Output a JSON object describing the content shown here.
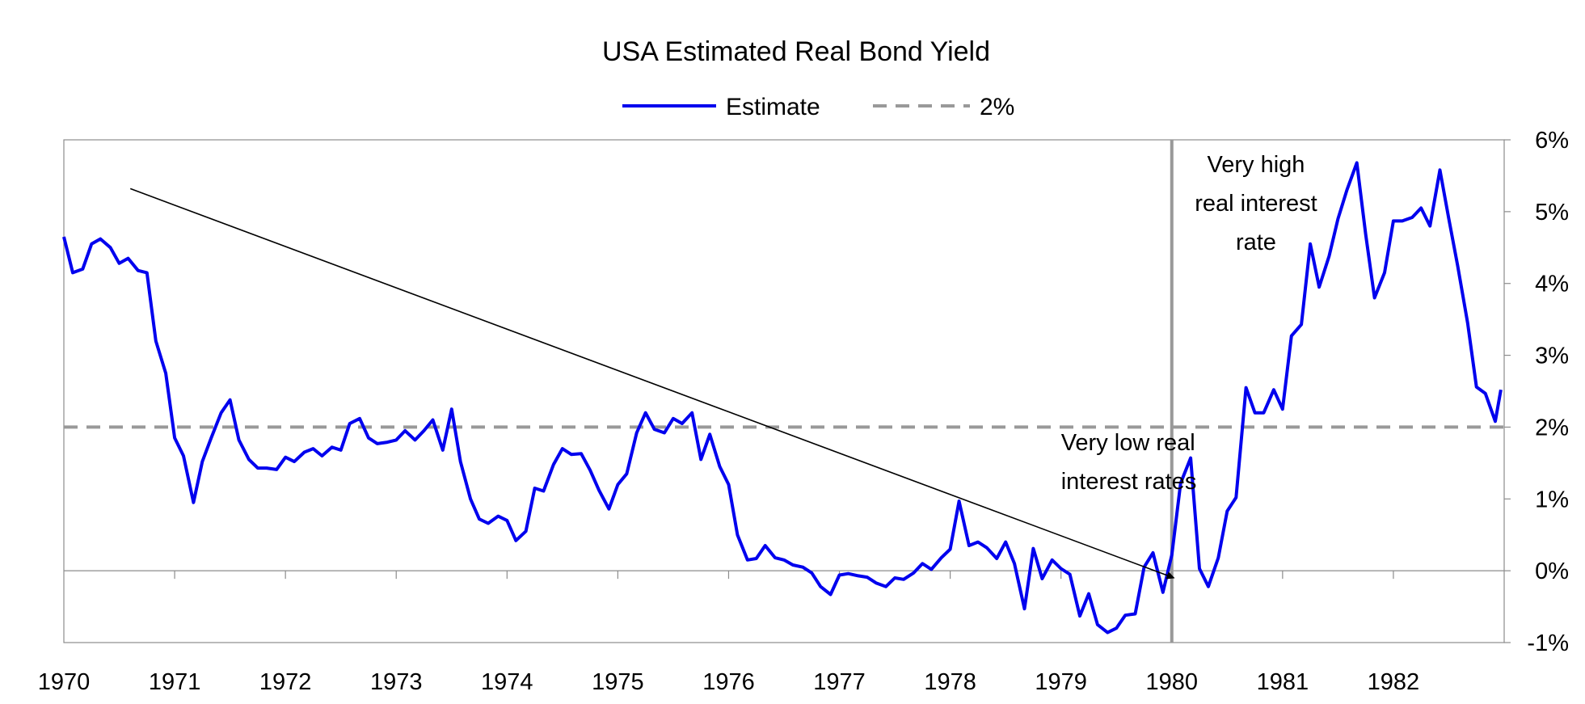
{
  "chart_data": {
    "type": "line",
    "title": "USA Estimated Real Bond Yield",
    "xlabel": "",
    "ylabel": "",
    "x_range": [
      1970,
      1983
    ],
    "x_ticks": [
      "1970",
      "1971",
      "1972",
      "1973",
      "1974",
      "1975",
      "1976",
      "1977",
      "1978",
      "1979",
      "1980",
      "1981",
      "1982"
    ],
    "ylim": [
      -1,
      6
    ],
    "y_ticks": [
      "-1%",
      "0%",
      "1%",
      "2%",
      "3%",
      "4%",
      "5%",
      "6%"
    ],
    "y_axis_side": "right",
    "grid": false,
    "legend_position": "top-center",
    "series": [
      {
        "name": "Estimate",
        "color": "#0000ee",
        "style": "solid",
        "points": [
          [
            1970.0,
            4.65
          ],
          [
            1970.08,
            4.15
          ],
          [
            1970.17,
            4.2
          ],
          [
            1970.25,
            4.55
          ],
          [
            1970.33,
            4.62
          ],
          [
            1970.42,
            4.5
          ],
          [
            1970.5,
            4.28
          ],
          [
            1970.58,
            4.35
          ],
          [
            1970.67,
            4.18
          ],
          [
            1970.75,
            4.15
          ],
          [
            1970.83,
            3.2
          ],
          [
            1970.92,
            2.75
          ],
          [
            1971.0,
            1.85
          ],
          [
            1971.08,
            1.6
          ],
          [
            1971.17,
            0.95
          ],
          [
            1971.25,
            1.52
          ],
          [
            1971.33,
            1.85
          ],
          [
            1971.42,
            2.2
          ],
          [
            1971.5,
            2.38
          ],
          [
            1971.58,
            1.82
          ],
          [
            1971.67,
            1.55
          ],
          [
            1971.75,
            1.43
          ],
          [
            1971.83,
            1.43
          ],
          [
            1971.92,
            1.41
          ],
          [
            1972.0,
            1.58
          ],
          [
            1972.08,
            1.52
          ],
          [
            1972.17,
            1.65
          ],
          [
            1972.25,
            1.7
          ],
          [
            1972.33,
            1.6
          ],
          [
            1972.42,
            1.72
          ],
          [
            1972.5,
            1.68
          ],
          [
            1972.58,
            2.05
          ],
          [
            1972.67,
            2.12
          ],
          [
            1972.75,
            1.85
          ],
          [
            1972.83,
            1.77
          ],
          [
            1972.92,
            1.79
          ],
          [
            1973.0,
            1.82
          ],
          [
            1973.08,
            1.95
          ],
          [
            1973.17,
            1.82
          ],
          [
            1973.25,
            1.95
          ],
          [
            1973.33,
            2.1
          ],
          [
            1973.42,
            1.68
          ],
          [
            1973.5,
            2.25
          ],
          [
            1973.58,
            1.52
          ],
          [
            1973.67,
            1.0
          ],
          [
            1973.75,
            0.72
          ],
          [
            1973.83,
            0.66
          ],
          [
            1973.92,
            0.76
          ],
          [
            1974.0,
            0.7
          ],
          [
            1974.08,
            0.42
          ],
          [
            1974.17,
            0.55
          ],
          [
            1974.25,
            1.15
          ],
          [
            1974.33,
            1.11
          ],
          [
            1974.42,
            1.48
          ],
          [
            1974.5,
            1.7
          ],
          [
            1974.58,
            1.62
          ],
          [
            1974.67,
            1.63
          ],
          [
            1974.75,
            1.4
          ],
          [
            1974.83,
            1.12
          ],
          [
            1974.92,
            0.86
          ],
          [
            1975.0,
            1.2
          ],
          [
            1975.08,
            1.35
          ],
          [
            1975.17,
            1.92
          ],
          [
            1975.25,
            2.2
          ],
          [
            1975.33,
            1.97
          ],
          [
            1975.42,
            1.92
          ],
          [
            1975.5,
            2.12
          ],
          [
            1975.58,
            2.05
          ],
          [
            1975.67,
            2.2
          ],
          [
            1975.75,
            1.55
          ],
          [
            1975.83,
            1.9
          ],
          [
            1975.92,
            1.45
          ],
          [
            1976.0,
            1.2
          ],
          [
            1976.08,
            0.5
          ],
          [
            1976.17,
            0.15
          ],
          [
            1976.25,
            0.17
          ],
          [
            1976.33,
            0.35
          ],
          [
            1976.42,
            0.18
          ],
          [
            1976.5,
            0.15
          ],
          [
            1976.58,
            0.08
          ],
          [
            1976.67,
            0.05
          ],
          [
            1976.75,
            -0.03
          ],
          [
            1976.83,
            -0.22
          ],
          [
            1976.92,
            -0.33
          ],
          [
            1977.0,
            -0.06
          ],
          [
            1977.08,
            -0.04
          ],
          [
            1977.17,
            -0.07
          ],
          [
            1977.25,
            -0.09
          ],
          [
            1977.33,
            -0.17
          ],
          [
            1977.42,
            -0.22
          ],
          [
            1977.5,
            -0.1
          ],
          [
            1977.58,
            -0.12
          ],
          [
            1977.67,
            -0.03
          ],
          [
            1977.75,
            0.1
          ],
          [
            1977.83,
            0.02
          ],
          [
            1977.92,
            0.18
          ],
          [
            1978.0,
            0.3
          ],
          [
            1978.08,
            0.97
          ],
          [
            1978.17,
            0.35
          ],
          [
            1978.25,
            0.4
          ],
          [
            1978.33,
            0.32
          ],
          [
            1978.42,
            0.17
          ],
          [
            1978.5,
            0.4
          ],
          [
            1978.58,
            0.1
          ],
          [
            1978.67,
            -0.53
          ],
          [
            1978.75,
            0.31
          ],
          [
            1978.83,
            -0.11
          ],
          [
            1978.92,
            0.15
          ],
          [
            1979.0,
            0.03
          ],
          [
            1979.08,
            -0.05
          ],
          [
            1979.17,
            -0.63
          ],
          [
            1979.25,
            -0.32
          ],
          [
            1979.33,
            -0.75
          ],
          [
            1979.42,
            -0.86
          ],
          [
            1979.5,
            -0.8
          ],
          [
            1979.58,
            -0.62
          ],
          [
            1979.67,
            -0.6
          ],
          [
            1979.75,
            0.05
          ],
          [
            1979.83,
            0.25
          ],
          [
            1979.92,
            -0.3
          ],
          [
            1980.0,
            0.22
          ],
          [
            1980.08,
            1.22
          ],
          [
            1980.17,
            1.57
          ],
          [
            1980.25,
            0.03
          ],
          [
            1980.33,
            -0.22
          ],
          [
            1980.42,
            0.18
          ],
          [
            1980.5,
            0.83
          ],
          [
            1980.58,
            1.02
          ],
          [
            1980.67,
            2.55
          ],
          [
            1980.75,
            2.2
          ],
          [
            1980.83,
            2.2
          ],
          [
            1980.92,
            2.52
          ],
          [
            1981.0,
            2.25
          ],
          [
            1981.08,
            3.27
          ],
          [
            1981.17,
            3.43
          ],
          [
            1981.25,
            4.55
          ],
          [
            1981.33,
            3.95
          ],
          [
            1981.42,
            4.38
          ],
          [
            1981.5,
            4.9
          ],
          [
            1981.58,
            5.3
          ],
          [
            1981.67,
            5.68
          ],
          [
            1981.75,
            4.68
          ],
          [
            1981.83,
            3.8
          ],
          [
            1981.92,
            4.15
          ],
          [
            1982.0,
            4.87
          ],
          [
            1982.08,
            4.87
          ],
          [
            1982.17,
            4.92
          ],
          [
            1982.25,
            5.05
          ],
          [
            1982.33,
            4.8
          ],
          [
            1982.42,
            5.58
          ],
          [
            1982.5,
            4.9
          ],
          [
            1982.58,
            4.25
          ],
          [
            1982.67,
            3.45
          ],
          [
            1982.75,
            2.56
          ],
          [
            1982.83,
            2.47
          ],
          [
            1982.92,
            2.08
          ],
          [
            1982.97,
            2.52
          ]
        ]
      },
      {
        "name": "2%",
        "color": "#999999",
        "style": "dashed",
        "points": [
          [
            1970.0,
            2.0
          ],
          [
            1983.0,
            2.0
          ]
        ]
      }
    ],
    "annotations": [
      {
        "type": "text",
        "lines": [
          "Very high",
          "real interest",
          "rate"
        ],
        "x": 1980.76,
        "y": 5.55
      },
      {
        "type": "text",
        "lines": [
          "Very low real",
          "interest rates"
        ],
        "x": 1979.0,
        "y": 1.68
      },
      {
        "type": "arrow",
        "from": [
          1970.6,
          5.32
        ],
        "to": [
          1980.02,
          -0.1
        ],
        "color": "#000000"
      },
      {
        "type": "vline",
        "x": 1980.0,
        "color": "#999999"
      }
    ]
  }
}
